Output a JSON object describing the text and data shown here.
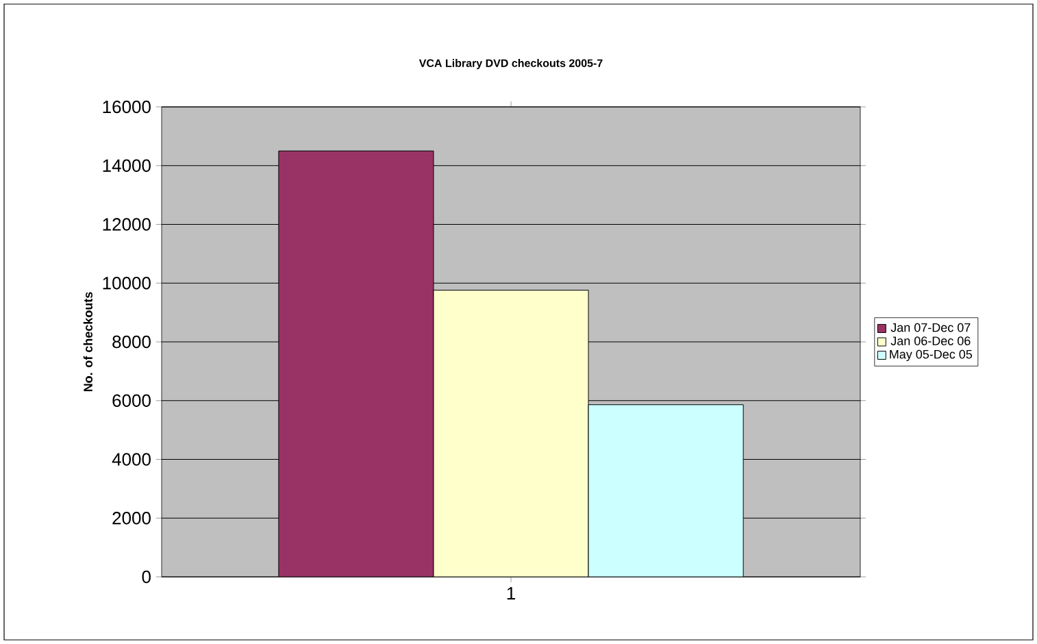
{
  "chart_data": {
    "type": "bar",
    "title": "VCA Library DVD checkouts 2005-7",
    "ylabel": "No. of checkouts",
    "categories": [
      "1"
    ],
    "series": [
      {
        "name": "Jan 07-Dec 07",
        "color": "#993366",
        "values": [
          14500
        ]
      },
      {
        "name": "Jan 06-Dec 06",
        "color": "#ffffcc",
        "values": [
          9760
        ]
      },
      {
        "name": "May 05-Dec 05",
        "color": "#ccffff",
        "values": [
          5860
        ]
      }
    ],
    "ylim": [
      0,
      16000
    ],
    "yticks": [
      0,
      2000,
      4000,
      6000,
      8000,
      10000,
      12000,
      14000,
      16000
    ],
    "grid": "y",
    "legend": "right"
  }
}
